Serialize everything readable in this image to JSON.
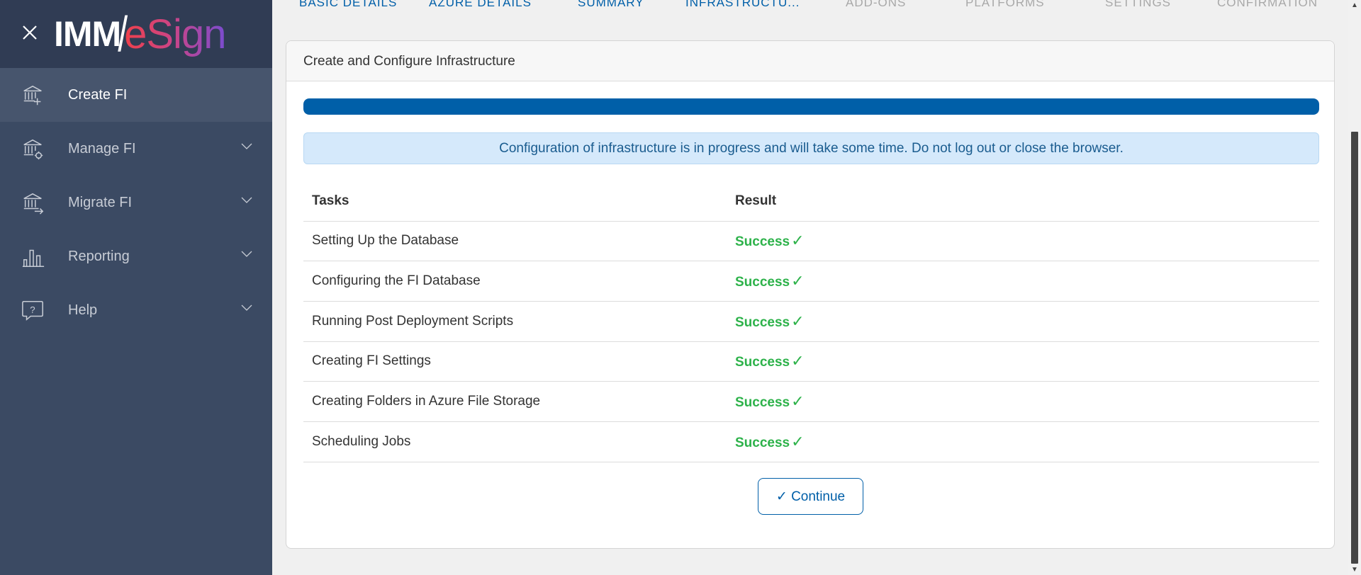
{
  "app": {
    "logo_brand": "IMM",
    "logo_product": "eSign"
  },
  "sidebar": {
    "items": [
      {
        "label": "Create FI",
        "icon": "bank-plus-icon",
        "active": true,
        "expandable": false
      },
      {
        "label": "Manage FI",
        "icon": "bank-gear-icon",
        "active": false,
        "expandable": true
      },
      {
        "label": "Migrate FI",
        "icon": "bank-arrow-icon",
        "active": false,
        "expandable": true
      },
      {
        "label": "Reporting",
        "icon": "bar-chart-icon",
        "active": false,
        "expandable": true
      },
      {
        "label": "Help",
        "icon": "help-bubble-icon",
        "active": false,
        "expandable": true
      }
    ]
  },
  "steps": [
    {
      "label": "BASIC DETAILS",
      "state": "done"
    },
    {
      "label": "AZURE DETAILS",
      "state": "done"
    },
    {
      "label": "SUMMARY",
      "state": "done"
    },
    {
      "label": "INFRASTRUCTU...",
      "state": "current"
    },
    {
      "label": "ADD-ONS",
      "state": "pending"
    },
    {
      "label": "PLATFORMS",
      "state": "pending"
    },
    {
      "label": "SETTINGS",
      "state": "pending"
    },
    {
      "label": "CONFIRMATION",
      "state": "pending"
    }
  ],
  "card": {
    "title": "Create and Configure Infrastructure",
    "progress_percent": 100,
    "info": "Configuration of infrastructure is in progress and will take some time. Do not log out or close the browser.",
    "columns": [
      "Tasks",
      "Result"
    ],
    "rows": [
      {
        "task": "Setting Up the Database",
        "result": "Success"
      },
      {
        "task": "Configuring the FI Database",
        "result": "Success"
      },
      {
        "task": "Running Post Deployment Scripts",
        "result": "Success"
      },
      {
        "task": "Creating FI Settings",
        "result": "Success"
      },
      {
        "task": "Creating Folders in Azure File Storage",
        "result": "Success"
      },
      {
        "task": "Scheduling Jobs",
        "result": "Success"
      }
    ],
    "check_glyph": "✓",
    "continue_label": "Continue"
  },
  "colors": {
    "primary": "#005fa8",
    "success": "#2db24a",
    "sidebar": "#3b4a63",
    "step_pending": "#a8a8a8"
  }
}
